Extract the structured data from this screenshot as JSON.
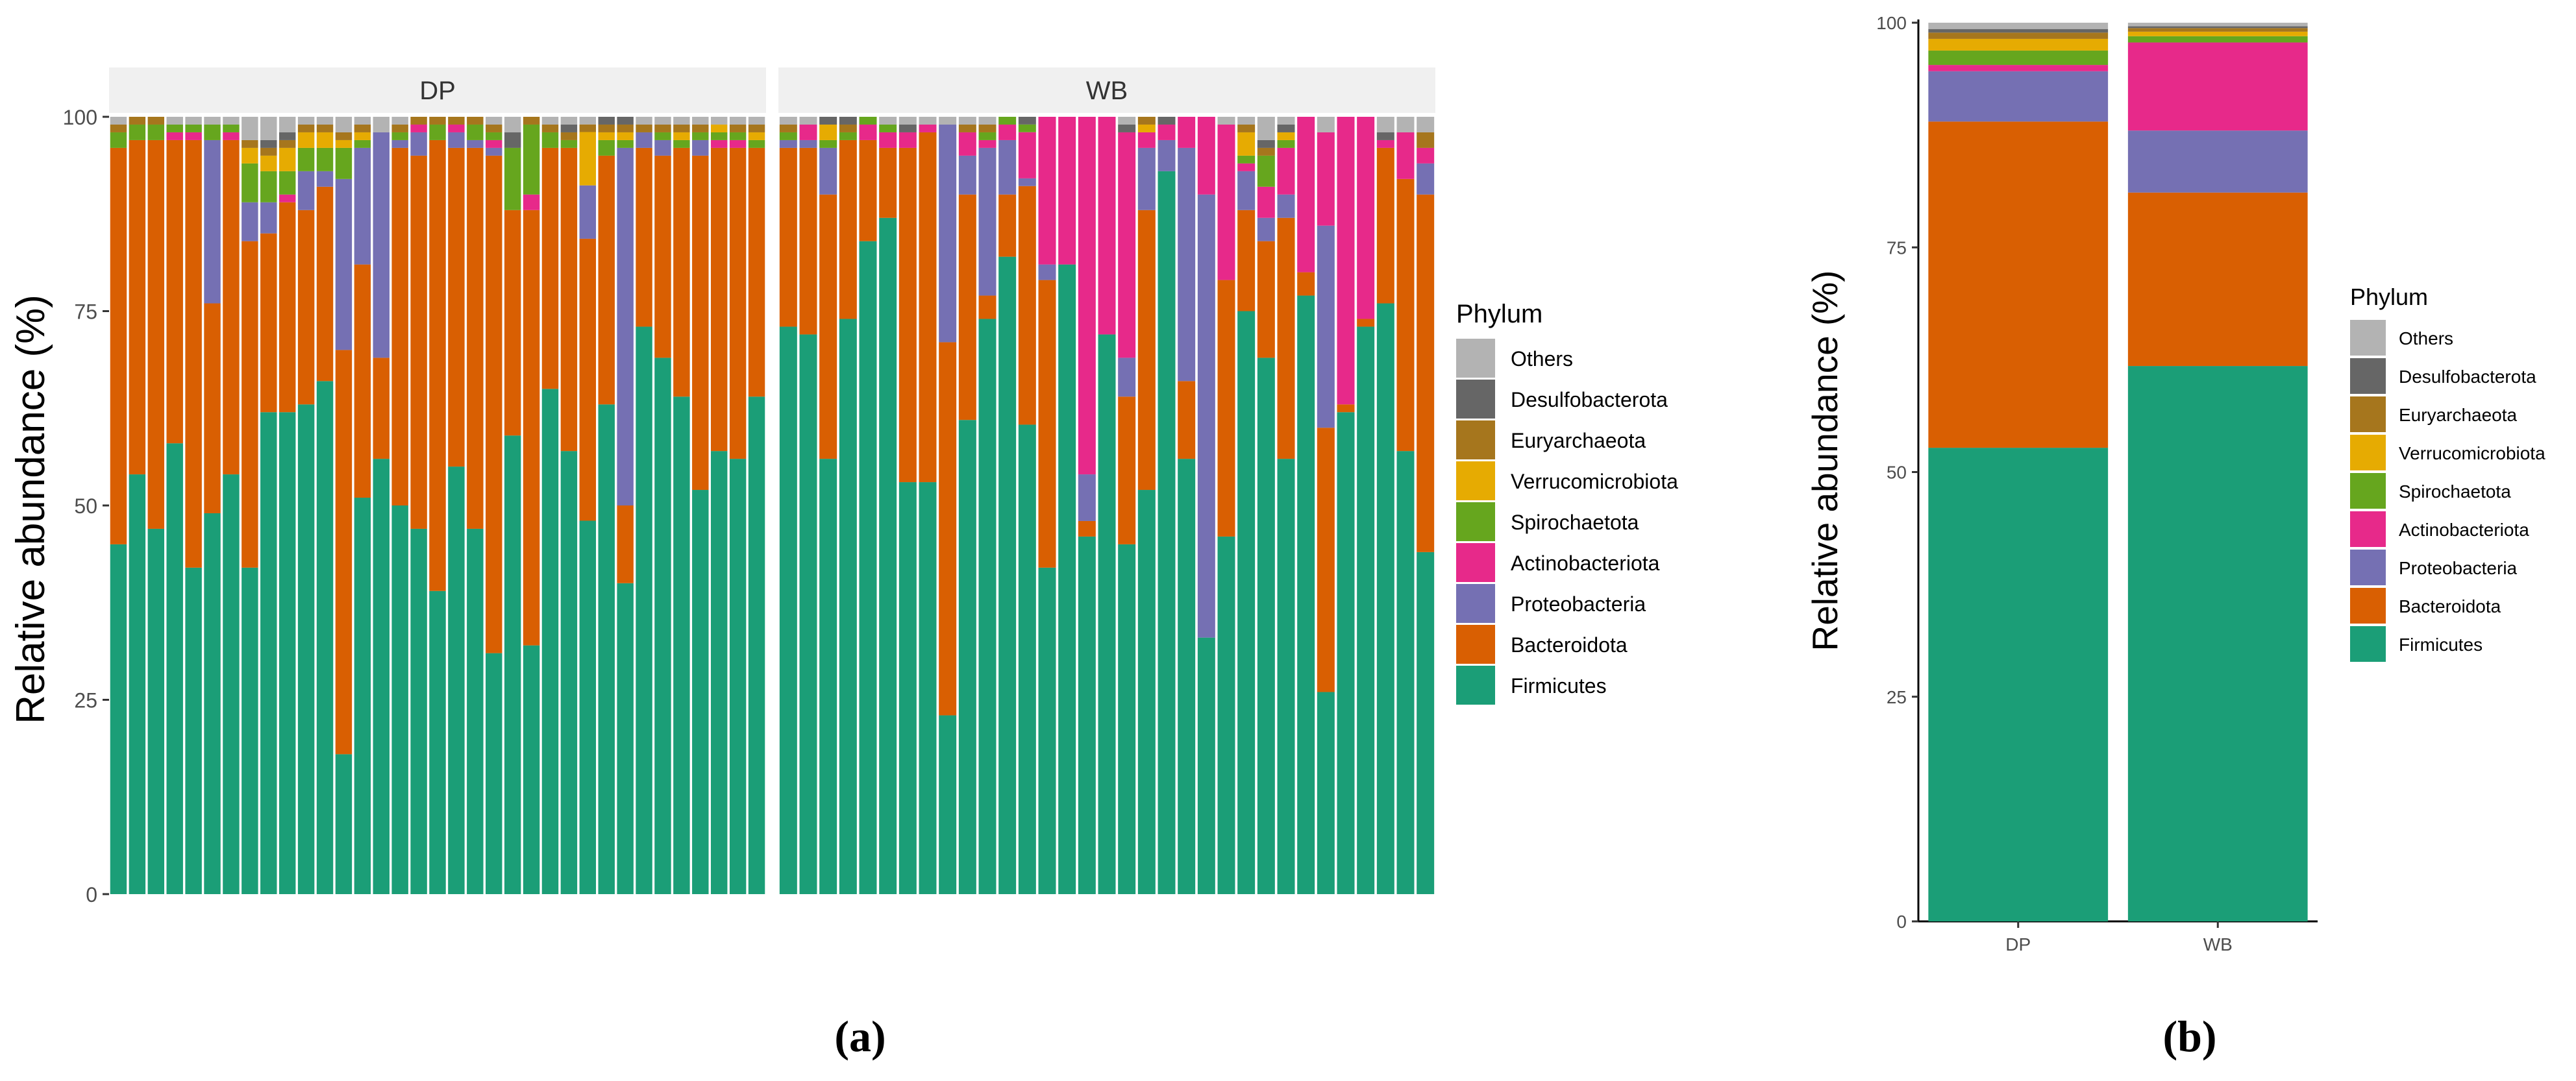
{
  "phylum_order": [
    "Firmicutes",
    "Bacteroidota",
    "Proteobacteria",
    "Actinobacteriota",
    "Spirochaetota",
    "Verrucomicrobiota",
    "Euryarchaeota",
    "Desulfobacterota",
    "Others"
  ],
  "colors": {
    "Firmicutes": "#1b9e77",
    "Bacteroidota": "#d95f02",
    "Proteobacteria": "#7570b3",
    "Actinobacteriota": "#e7298a",
    "Spirochaetota": "#66a61e",
    "Verrucomicrobiota": "#e6ab02",
    "Euryarchaeota": "#a6761d",
    "Desulfobacterota": "#666666",
    "Others": "#b3b3b3",
    "strip": "#f0f0f0",
    "axis": "#333333"
  },
  "chart_data": [
    {
      "type": "bar",
      "stacked": true,
      "panel_label": "(a)",
      "title": "",
      "xlabel": "",
      "ylabel": "Relative abundance (%)",
      "ylim": [
        0,
        100
      ],
      "yticks": [
        "0",
        "25",
        "50",
        "75",
        "100"
      ],
      "legend_title": "Phylum",
      "legend_position": "right",
      "legend_entries": [
        "Others",
        "Desulfobacterota",
        "Euryarchaeota",
        "Verrucomicrobiota",
        "Spirochaetota",
        "Actinobacteriota",
        "Proteobacteria",
        "Bacteroidota",
        "Firmicutes"
      ],
      "facets": [
        {
          "name": "DP",
          "samples": [
            [
              45,
              51,
              0,
              0,
              2,
              0,
              1,
              0,
              1
            ],
            [
              54,
              43,
              0,
              0,
              2,
              0,
              1,
              0,
              0
            ],
            [
              47,
              50,
              0,
              0,
              2,
              0,
              1,
              0,
              0
            ],
            [
              58,
              39,
              0,
              1,
              1,
              0,
              0,
              0,
              1
            ],
            [
              42,
              55,
              0,
              1,
              1,
              0,
              0,
              0,
              1
            ],
            [
              49,
              27,
              21,
              0,
              2,
              0,
              0,
              0,
              1
            ],
            [
              54,
              43,
              0,
              1,
              1,
              0,
              0,
              0,
              1
            ],
            [
              42,
              42,
              5,
              0,
              5,
              2,
              1,
              0,
              3
            ],
            [
              62,
              23,
              4,
              0,
              4,
              2,
              1,
              1,
              3
            ],
            [
              62,
              27,
              0,
              1,
              3,
              3,
              1,
              1,
              2
            ],
            [
              63,
              25,
              5,
              0,
              3,
              2,
              1,
              0,
              1
            ],
            [
              66,
              25,
              2,
              0,
              3,
              2,
              1,
              0,
              1
            ],
            [
              18,
              52,
              22,
              0,
              4,
              1,
              1,
              0,
              2
            ],
            [
              51,
              30,
              15,
              0,
              1,
              1,
              1,
              0,
              1
            ],
            [
              56,
              13,
              29,
              0,
              0,
              0,
              0,
              0,
              2
            ],
            [
              50,
              46,
              1,
              0,
              1,
              0,
              1,
              0,
              1
            ],
            [
              47,
              48,
              3,
              1,
              0,
              0,
              1,
              0,
              0
            ],
            [
              39,
              58,
              0,
              0,
              2,
              0,
              1,
              0,
              0
            ],
            [
              55,
              41,
              2,
              1,
              0,
              0,
              1,
              0,
              0
            ],
            [
              47,
              49,
              1,
              0,
              2,
              0,
              1,
              0,
              0
            ],
            [
              31,
              64,
              1,
              1,
              1,
              0,
              1,
              0,
              1
            ],
            [
              59,
              29,
              0,
              0,
              8,
              0,
              0,
              2,
              2
            ],
            [
              32,
              56,
              0,
              2,
              9,
              0,
              1,
              0,
              0
            ],
            [
              65,
              31,
              0,
              0,
              2,
              0,
              1,
              0,
              1
            ],
            [
              57,
              39,
              0,
              0,
              1,
              0,
              1,
              1,
              1
            ],
            [
              49,
              37,
              7,
              0,
              0,
              7,
              1,
              0,
              1
            ],
            [
              63,
              32,
              0,
              0,
              2,
              1,
              1,
              1,
              0
            ],
            [
              40,
              10,
              46,
              0,
              1,
              1,
              1,
              1,
              0
            ],
            [
              73,
              23,
              2,
              0,
              0,
              0,
              1,
              0,
              1
            ],
            [
              69,
              26,
              2,
              0,
              1,
              0,
              1,
              0,
              1
            ],
            [
              64,
              32,
              0,
              0,
              1,
              1,
              1,
              0,
              1
            ],
            [
              52,
              43,
              2,
              0,
              1,
              0,
              1,
              0,
              1
            ],
            [
              57,
              39,
              0,
              1,
              1,
              1,
              0,
              0,
              1
            ],
            [
              56,
              40,
              0,
              1,
              1,
              0,
              1,
              0,
              1
            ],
            [
              64,
              32,
              0,
              0,
              1,
              1,
              1,
              0,
              1
            ]
          ]
        },
        {
          "name": "WB",
          "samples": [
            [
              73,
              23,
              1,
              0,
              1,
              0,
              1,
              0,
              1
            ],
            [
              72,
              24,
              1,
              2,
              0,
              0,
              0,
              0,
              1
            ],
            [
              56,
              34,
              6,
              0,
              1,
              2,
              0,
              1,
              0
            ],
            [
              74,
              23,
              0,
              0,
              1,
              0,
              1,
              1,
              0
            ],
            [
              84,
              13,
              0,
              2,
              1,
              0,
              0,
              0,
              0
            ],
            [
              87,
              9,
              0,
              2,
              1,
              0,
              0,
              0,
              1
            ],
            [
              53,
              43,
              0,
              2,
              0,
              0,
              0,
              1,
              1
            ],
            [
              53,
              45,
              0,
              1,
              0,
              0,
              0,
              0,
              1
            ],
            [
              23,
              48,
              28,
              0,
              0,
              0,
              0,
              0,
              1
            ],
            [
              61,
              29,
              5,
              3,
              0,
              0,
              1,
              0,
              1
            ],
            [
              74,
              3,
              19,
              1,
              1,
              0,
              1,
              0,
              1
            ],
            [
              82,
              8,
              7,
              2,
              1,
              0,
              0,
              0,
              0
            ],
            [
              61,
              31,
              1,
              6,
              1,
              0,
              0,
              1,
              0
            ],
            [
              42,
              37,
              2,
              19,
              0,
              0,
              0,
              0,
              0
            ],
            [
              81,
              0,
              0,
              19,
              0,
              0,
              0,
              0,
              0
            ],
            [
              46,
              2,
              6,
              46,
              0,
              0,
              0,
              0,
              0
            ],
            [
              72,
              0,
              0,
              28,
              0,
              0,
              0,
              0,
              0
            ],
            [
              45,
              19,
              5,
              29,
              0,
              0,
              0,
              1,
              1
            ],
            [
              52,
              36,
              8,
              2,
              0,
              1,
              1,
              0,
              0
            ],
            [
              93,
              0,
              4,
              2,
              0,
              0,
              0,
              1,
              0
            ],
            [
              56,
              10,
              30,
              4,
              0,
              0,
              0,
              0,
              0
            ],
            [
              33,
              0,
              57,
              10,
              0,
              0,
              0,
              0,
              0
            ],
            [
              46,
              33,
              0,
              20,
              0,
              0,
              0,
              0,
              1
            ],
            [
              75,
              13,
              5,
              1,
              1,
              3,
              1,
              0,
              1
            ],
            [
              69,
              15,
              3,
              4,
              4,
              0,
              1,
              1,
              3
            ],
            [
              56,
              31,
              3,
              6,
              1,
              1,
              0,
              1,
              1
            ],
            [
              77,
              3,
              0,
              20,
              0,
              0,
              0,
              0,
              0
            ],
            [
              26,
              34,
              26,
              12,
              0,
              0,
              0,
              0,
              2
            ],
            [
              62,
              1,
              0,
              37,
              0,
              0,
              0,
              0,
              0
            ],
            [
              73,
              1,
              0,
              26,
              0,
              0,
              0,
              0,
              0
            ],
            [
              76,
              20,
              0,
              1,
              0,
              0,
              0,
              1,
              2
            ],
            [
              57,
              35,
              0,
              6,
              0,
              0,
              0,
              0,
              2
            ],
            [
              44,
              46,
              4,
              2,
              0,
              0,
              2,
              0,
              2
            ]
          ]
        }
      ]
    },
    {
      "type": "bar",
      "stacked": true,
      "panel_label": "(b)",
      "title": "",
      "xlabel": "",
      "ylabel": "Relative abundance (%)",
      "ylim": [
        0,
        100
      ],
      "yticks": [
        "0",
        "25",
        "50",
        "75",
        "100"
      ],
      "categories": [
        "DP",
        "WB"
      ],
      "series": [
        {
          "name": "Firmicutes",
          "values": [
            52.7,
            61.8
          ]
        },
        {
          "name": "Bacteroidota",
          "values": [
            36.3,
            19.3
          ]
        },
        {
          "name": "Proteobacteria",
          "values": [
            5.6,
            6.9
          ]
        },
        {
          "name": "Actinobacteriota",
          "values": [
            0.7,
            9.8
          ]
        },
        {
          "name": "Spirochaetota",
          "values": [
            1.6,
            0.7
          ]
        },
        {
          "name": "Verrucomicrobiota",
          "values": [
            1.3,
            0.5
          ]
        },
        {
          "name": "Euryarchaeota",
          "values": [
            0.7,
            0.4
          ]
        },
        {
          "name": "Desulfobacterota",
          "values": [
            0.4,
            0.2
          ]
        },
        {
          "name": "Others",
          "values": [
            0.7,
            0.4
          ]
        }
      ],
      "legend_title": "Phylum",
      "legend_position": "right",
      "legend_entries": [
        "Others",
        "Desulfobacterota",
        "Euryarchaeota",
        "Verrucomicrobiota",
        "Spirochaetota",
        "Actinobacteriota",
        "Proteobacteria",
        "Bacteroidota",
        "Firmicutes"
      ]
    }
  ]
}
